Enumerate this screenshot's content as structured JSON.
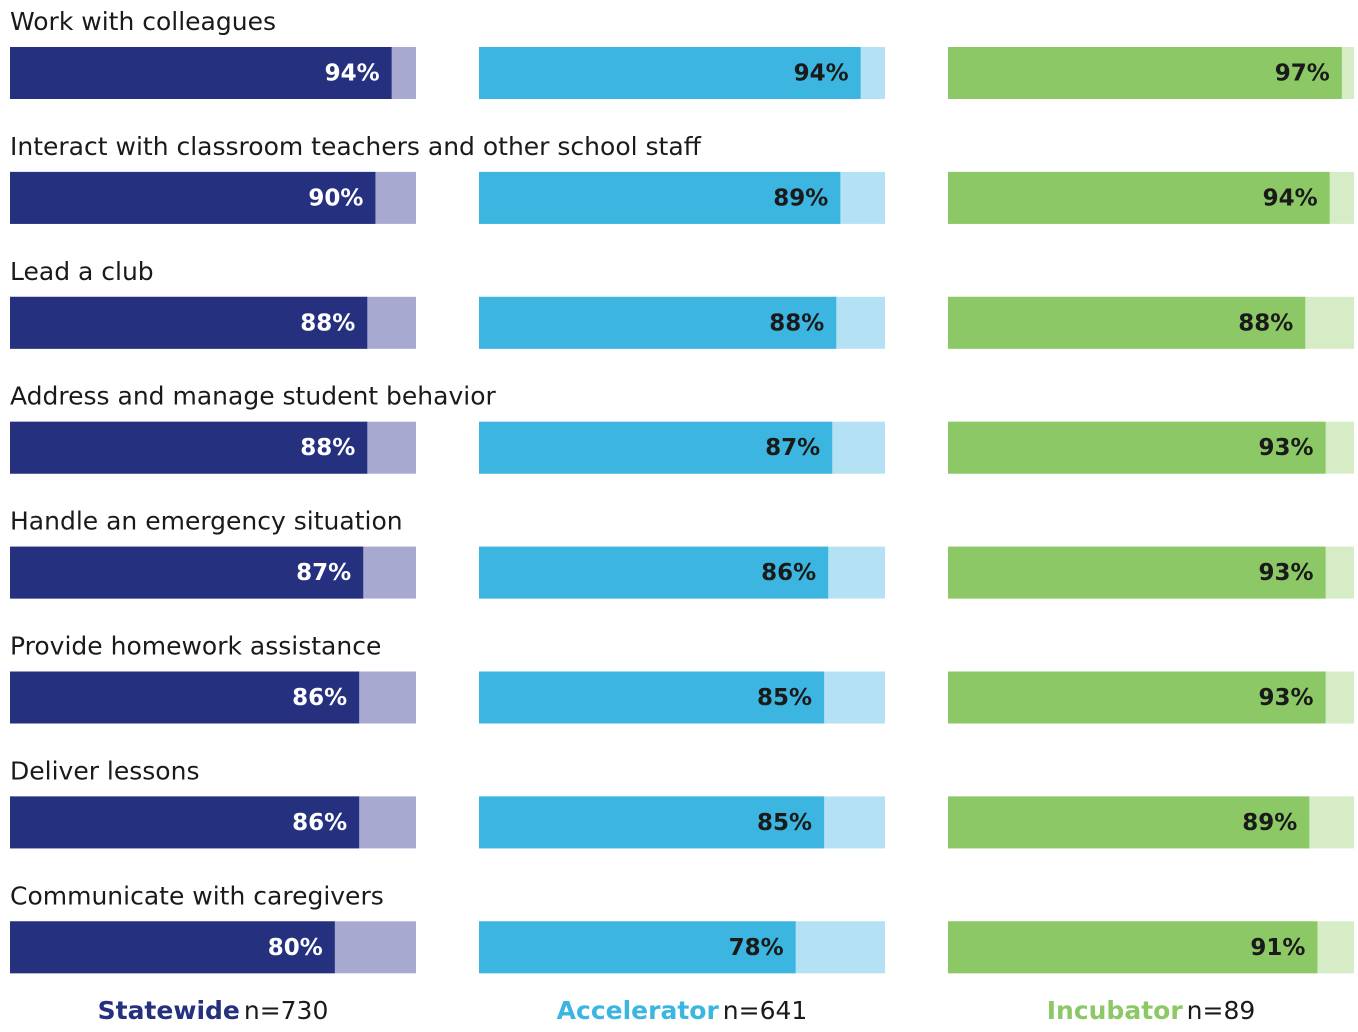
{
  "chart_data": {
    "type": "bar",
    "orientation": "horizontal",
    "categories": [
      "Work with colleagues",
      "Interact with classroom teachers and other school staff",
      "Lead a club",
      "Address and manage student behavior",
      "Handle an emergency situation",
      "Provide homework assistance",
      "Deliver lessons",
      "Communicate with caregivers"
    ],
    "xlim": [
      0,
      100
    ],
    "series": [
      {
        "name": "Statewide",
        "n": "n=730",
        "color": "#25317f",
        "track_color": "#a7a9d1",
        "label_color": "#ffffff",
        "values": [
          94,
          90,
          88,
          88,
          87,
          86,
          86,
          80
        ],
        "value_labels": [
          "94%",
          "90%",
          "88%",
          "88%",
          "87%",
          "86%",
          "86%",
          "80%"
        ]
      },
      {
        "name": "Accelerator",
        "n": "n=641",
        "color": "#3cb6e0",
        "track_color": "#b4e1f3",
        "label_color": "#1a1a1a",
        "values": [
          94,
          89,
          88,
          87,
          86,
          85,
          85,
          78
        ],
        "value_labels": [
          "94%",
          "89%",
          "88%",
          "87%",
          "86%",
          "85%",
          "85%",
          "78%"
        ]
      },
      {
        "name": "Incubator",
        "n": "n=89",
        "color": "#8cc866",
        "track_color": "#d6ecc6",
        "label_color": "#1a1a1a",
        "values": [
          97,
          94,
          88,
          93,
          93,
          93,
          89,
          91
        ],
        "value_labels": [
          "97%",
          "94%",
          "88%",
          "93%",
          "93%",
          "93%",
          "89%",
          "91%"
        ]
      }
    ]
  }
}
